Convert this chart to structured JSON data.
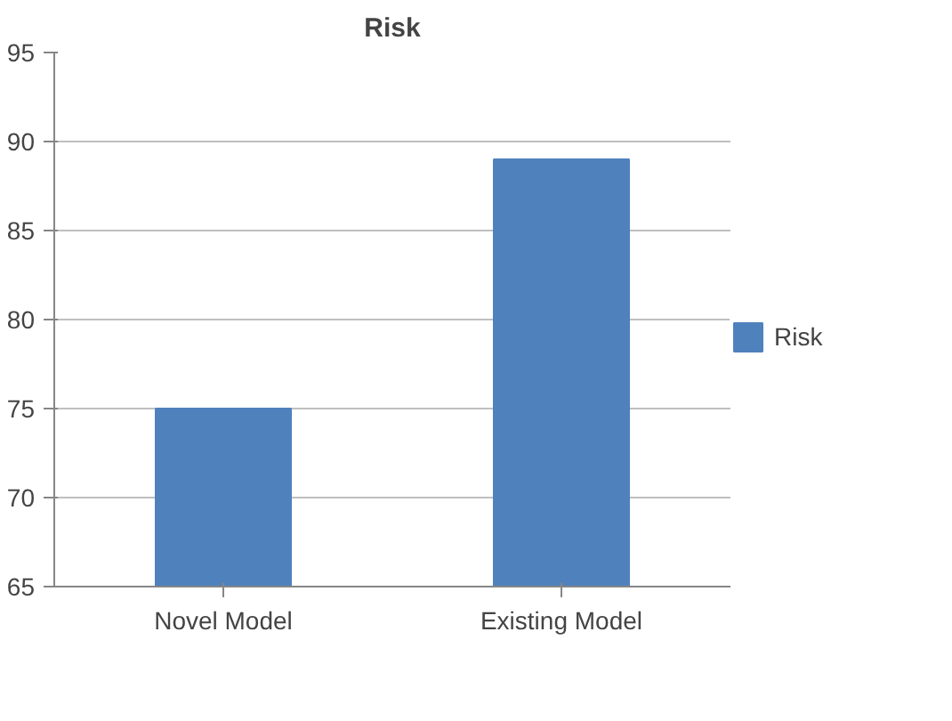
{
  "chart_data": {
    "type": "bar",
    "title": "Risk",
    "categories": [
      "Novel Model",
      "Existing Model"
    ],
    "series": [
      {
        "name": "Risk",
        "color": "#4f81bd",
        "values": [
          75,
          89
        ]
      }
    ],
    "ylim": [
      65,
      95
    ],
    "yticks": [
      65,
      70,
      75,
      80,
      85,
      90,
      95
    ],
    "grid": "y",
    "legend": "right"
  }
}
